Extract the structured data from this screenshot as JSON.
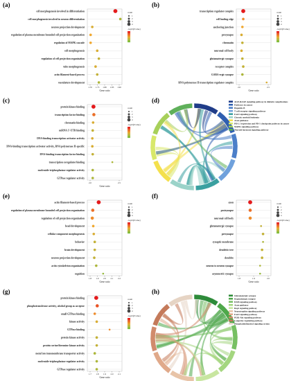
{
  "colors": {
    "high": "#e41a1c",
    "mid": "#f0a830",
    "low": "#7fbf3f",
    "axis": "#666666",
    "grid": "#dddddd"
  },
  "chart_data": [
    {
      "id": "a",
      "type": "scatter",
      "xlabel": "Gene ratio",
      "xlim": [
        1.7,
        1.91
      ],
      "xticks": [
        "1.70",
        "1.75",
        "1.80",
        "1.85",
        "1.90"
      ],
      "legend": {
        "count_title": "count",
        "padj_title": "-log10(P value)"
      },
      "categories": [
        "cell morphogenesis involved in differentiation",
        "cell morphogenesis involved in neuron differentiation",
        "neuron projection development",
        "regulation of plasma membrane bounded cell projection organization",
        "regulation of MAPK cascade",
        "cell morphogenesis",
        "regulation of cell projection organization",
        "tube morphogenesis",
        "actin filament-based process",
        "vasculature development"
      ],
      "points": [
        {
          "x": 1.87,
          "size": 4,
          "p": 1.0
        },
        {
          "x": 1.9,
          "size": 2,
          "p": 0.2
        },
        {
          "x": 1.73,
          "size": 2,
          "p": 0.4
        },
        {
          "x": 1.72,
          "size": 2,
          "p": 0.5
        },
        {
          "x": 1.72,
          "size": 2,
          "p": 0.5
        },
        {
          "x": 1.76,
          "size": 2,
          "p": 0.4
        },
        {
          "x": 1.77,
          "size": 2,
          "p": 0.3
        },
        {
          "x": 1.75,
          "size": 2,
          "p": 0.4
        },
        {
          "x": 1.76,
          "size": 2,
          "p": 0.3
        },
        {
          "x": 1.77,
          "size": 2,
          "p": 0.2
        }
      ]
    },
    {
      "id": "b",
      "type": "scatter",
      "xlabel": "Gene ratio",
      "xlim": [
        1.7,
        2.1
      ],
      "xticks": [
        "2.0",
        "2.5"
      ],
      "legend": {
        "count_title": "count",
        "padj_title": "-log10(P value)"
      },
      "categories": [
        "transcription regulator complex",
        "cell leading edge",
        "anchoring junction",
        "presynapse",
        "chromatin",
        "neuronal cell body",
        "glutamatergic synapse",
        "receptor complex",
        "GABA-ergic synapse",
        "RNA polymerase II transcription regulator complex"
      ],
      "points": [
        {
          "x": 1.78,
          "size": 4,
          "p": 1.0
        },
        {
          "x": 1.78,
          "size": 2,
          "p": 0.6
        },
        {
          "x": 1.77,
          "size": 2,
          "p": 0.5
        },
        {
          "x": 1.76,
          "size": 2,
          "p": 0.4
        },
        {
          "x": 1.77,
          "size": 2,
          "p": 0.3
        },
        {
          "x": 1.76,
          "size": 2,
          "p": 0.4
        },
        {
          "x": 1.77,
          "size": 2,
          "p": 0.3
        },
        {
          "x": 1.78,
          "size": 2,
          "p": 0.3
        },
        {
          "x": 1.77,
          "size": 2,
          "p": 0.2
        },
        {
          "x": 2.05,
          "size": 1,
          "p": 0.4
        }
      ]
    },
    {
      "id": "c",
      "type": "scatter",
      "xlabel": "Gene ratio",
      "xlim": [
        1.7,
        2.6
      ],
      "xticks": [
        "2.0",
        "2.5"
      ],
      "legend": {
        "count_title": "count",
        "padj_title": "-log10(P value)"
      },
      "categories": [
        "protein kinase binding",
        "transcription factor binding",
        "chromatin binding",
        "miRNA 3'-UTR binding",
        "DNA-binding transcription activator activity",
        "DNA-binding transcription activator activity, RNA polymerase II-specific",
        "DNA-binding transcription factor binding",
        "transcription coregulator binding",
        "nucleoside-triphosphatase regulator activity",
        "GTPase regulator activity"
      ],
      "points": [
        {
          "x": 1.86,
          "size": 4,
          "p": 1.0
        },
        {
          "x": 1.87,
          "size": 3,
          "p": 0.7
        },
        {
          "x": 1.85,
          "size": 2,
          "p": 0.4
        },
        {
          "x": 1.84,
          "size": 2,
          "p": 0.3
        },
        {
          "x": 1.83,
          "size": 2,
          "p": 0.4
        },
        {
          "x": 1.83,
          "size": 2,
          "p": 0.4
        },
        {
          "x": 1.84,
          "size": 2,
          "p": 0.3
        },
        {
          "x": 2.35,
          "size": 1,
          "p": 0.2
        },
        {
          "x": 1.84,
          "size": 2,
          "p": 0.2
        },
        {
          "x": 1.84,
          "size": 2,
          "p": 0.2
        }
      ]
    },
    {
      "id": "e",
      "type": "scatter",
      "xlabel": "Gene ratio",
      "xlim": [
        1.7,
        2.4
      ],
      "xticks": [
        "1.8",
        "1.9",
        "2.0",
        "2.1",
        "2.2"
      ],
      "legend": {
        "count_title": "count",
        "padj_title": "-log10(P value)"
      },
      "categories": [
        "actin filament-based process",
        "regulation of plasma membrane bounded cell projection organization",
        "regulation of cell projection organization",
        "head development",
        "cellular component morphogenesis",
        "behavior",
        "brain development",
        "neuron projection development",
        "actin cytoskeleton organization",
        "cognition"
      ],
      "points": [
        {
          "x": 1.93,
          "size": 4,
          "p": 1.0
        },
        {
          "x": 1.81,
          "size": 3,
          "p": 0.7
        },
        {
          "x": 1.8,
          "size": 3,
          "p": 0.6
        },
        {
          "x": 1.82,
          "size": 2,
          "p": 0.5
        },
        {
          "x": 1.83,
          "size": 2,
          "p": 0.4
        },
        {
          "x": 1.85,
          "size": 2,
          "p": 0.3
        },
        {
          "x": 1.85,
          "size": 2,
          "p": 0.3
        },
        {
          "x": 1.84,
          "size": 2,
          "p": 0.3
        },
        {
          "x": 1.88,
          "size": 2,
          "p": 0.2
        },
        {
          "x": 2.02,
          "size": 1,
          "p": 0.1
        }
      ]
    },
    {
      "id": "f",
      "type": "scatter",
      "xlabel": "Gene ratio",
      "xlim": [
        1.65,
        2.0
      ],
      "xticks": [
        "1.8",
        "1.9",
        "2.0"
      ],
      "legend": {
        "count_title": "count",
        "padj_title": "-log10(P value)"
      },
      "categories": [
        "axon",
        "postsynapse",
        "neuronal cell body",
        "glutamatergic synapse",
        "presynapse",
        "synaptic membrane",
        "dendritic tree",
        "dendrite",
        "neuron to neuron synapse",
        "asymmetric synapse"
      ],
      "points": [
        {
          "x": 1.79,
          "size": 4,
          "p": 1.0
        },
        {
          "x": 1.79,
          "size": 3,
          "p": 0.7
        },
        {
          "x": 1.79,
          "size": 3,
          "p": 0.6
        },
        {
          "x": 1.9,
          "size": 1,
          "p": 0.3
        },
        {
          "x": 1.92,
          "size": 2,
          "p": 0.3
        },
        {
          "x": 1.92,
          "size": 1,
          "p": 0.2
        },
        {
          "x": 1.91,
          "size": 2,
          "p": 0.3
        },
        {
          "x": 1.91,
          "size": 2,
          "p": 0.3
        },
        {
          "x": 1.89,
          "size": 1,
          "p": 0.2
        },
        {
          "x": 1.89,
          "size": 1,
          "p": 0.1
        }
      ]
    },
    {
      "id": "g",
      "type": "scatter",
      "xlabel": "Gene ratio",
      "xlim": [
        1.65,
        2.35
      ],
      "xticks": [
        "1.7",
        "1.8",
        "1.9",
        "2.0",
        "2.1"
      ],
      "legend": {
        "count_title": "count",
        "padj_title": "-log10(P value)"
      },
      "categories": [
        "protein kinase binding",
        "phosphotransferase activity, alcohol group as acceptor",
        "small GTPase binding",
        "kinase activity",
        "GTPase binding",
        "protein kinase activity",
        "protein serine/threonine kinase activity",
        "metal ion transmembrane transporter activity",
        "nucleoside-triphosphatase regulator activity",
        "GTPase regulator activity"
      ],
      "points": [
        {
          "x": 1.83,
          "size": 4,
          "p": 1.0
        },
        {
          "x": 1.85,
          "size": 3,
          "p": 0.8
        },
        {
          "x": 1.8,
          "size": 2,
          "p": 0.6
        },
        {
          "x": 1.84,
          "size": 2,
          "p": 0.4
        },
        {
          "x": 2.1,
          "size": 1,
          "p": 0.6
        },
        {
          "x": 1.84,
          "size": 2,
          "p": 0.3
        },
        {
          "x": 1.84,
          "size": 2,
          "p": 0.3
        },
        {
          "x": 1.8,
          "size": 2,
          "p": 0.2
        },
        {
          "x": 1.84,
          "size": 2,
          "p": 0.2
        },
        {
          "x": 1.84,
          "size": 2,
          "p": 0.2
        }
      ]
    },
    {
      "id": "d",
      "type": "chord",
      "legend": [
        {
          "label": "AGE-RAGE signaling pathway in diabetic complications",
          "color": "#1f3c88"
        },
        {
          "label": "Pathways in cancer",
          "color": "#2f5fb0"
        },
        {
          "label": "Hepatitis B",
          "color": "#4c7fc9"
        },
        {
          "label": "T cell receptor signaling pathway",
          "color": "#6fa1dc"
        },
        {
          "label": "FoxO signaling pathway",
          "color": "#3aa0a0"
        },
        {
          "label": "Chronic myeloid leukemia",
          "color": "#9bd3c9"
        },
        {
          "label": "Axon guidance",
          "color": "#f4e04d"
        },
        {
          "label": "PD-L1 expression and PD-1 checkpoint pathway in cancer",
          "color": "#d8e86a"
        },
        {
          "label": "MAPK signaling pathway",
          "color": "#a7d05a"
        },
        {
          "label": "Thyroid hormone signaling pathway",
          "color": "#5fb05a"
        }
      ]
    },
    {
      "id": "h",
      "type": "chord",
      "legend": [
        {
          "label": "Glutamatergic synapse",
          "color": "#2e8b3a"
        },
        {
          "label": "Dopaminergic synapse",
          "color": "#4ea84a"
        },
        {
          "label": "ErbB signaling pathway",
          "color": "#77c063"
        },
        {
          "label": "Axon guidance",
          "color": "#a4d67f"
        },
        {
          "label": "Rap1 signaling pathway",
          "color": "#c8e6a0"
        },
        {
          "label": "Neurotrophin signaling pathway",
          "color": "#e8c4a8"
        },
        {
          "label": "FoxO signaling pathway",
          "color": "#e0a98a"
        },
        {
          "label": "PI3K-Akt signaling pathway",
          "color": "#d18b6c"
        },
        {
          "label": "Longevity regulating pathway",
          "color": "#c47a5a"
        },
        {
          "label": "Phosphatidylinositol signaling system",
          "color": "#e6d4c4"
        }
      ]
    }
  ],
  "panels": {
    "a": "(a)",
    "b": "(b)",
    "c": "(c)",
    "d": "(d)",
    "e": "(e)",
    "f": "(f)",
    "g": "(g)",
    "h": "(h)"
  },
  "legend_size_labels": [
    "1",
    "2",
    "3",
    "4"
  ]
}
